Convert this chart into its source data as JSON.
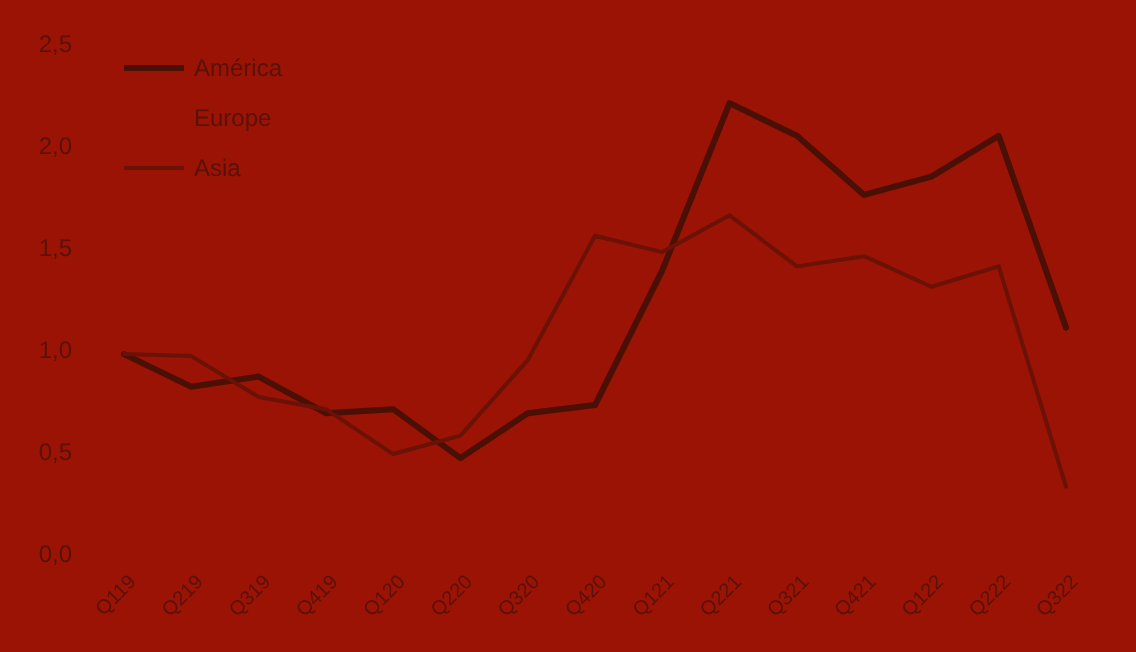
{
  "chart_data": {
    "type": "line",
    "categories": [
      "Q119",
      "Q219",
      "Q319",
      "Q419",
      "Q120",
      "Q220",
      "Q320",
      "Q420",
      "Q121",
      "Q221",
      "Q321",
      "Q421",
      "Q122",
      "Q222",
      "Q322"
    ],
    "series": [
      {
        "name": "América",
        "color": "#4a0f05",
        "values": [
          0.98,
          0.82,
          0.87,
          0.69,
          0.71,
          0.47,
          0.69,
          0.73,
          1.39,
          2.21,
          2.05,
          1.76,
          1.85,
          2.05,
          1.11
        ]
      },
      {
        "name": "Europe",
        "values": [
          null,
          null,
          null,
          null,
          null,
          null,
          null,
          null,
          null,
          null,
          null,
          null,
          null,
          null,
          null
        ]
      },
      {
        "name": "Asia",
        "color": "#6a1206",
        "values": [
          0.98,
          0.97,
          0.77,
          0.71,
          0.49,
          0.58,
          0.95,
          1.56,
          1.48,
          1.66,
          1.41,
          1.46,
          1.31,
          1.41,
          0.33
        ]
      }
    ],
    "ylim": [
      0,
      2.5
    ],
    "yticks": [
      {
        "value": 0,
        "label": "0,0"
      },
      {
        "value": 0.5,
        "label": "0,5"
      },
      {
        "value": 1,
        "label": "1,0"
      },
      {
        "value": 1.5,
        "label": "1,5"
      },
      {
        "value": 2,
        "label": "2,0"
      },
      {
        "value": 2.5,
        "label": "2,5"
      }
    ],
    "legend": "top left",
    "grid": false,
    "marker": "none",
    "line_style": "solid"
  }
}
